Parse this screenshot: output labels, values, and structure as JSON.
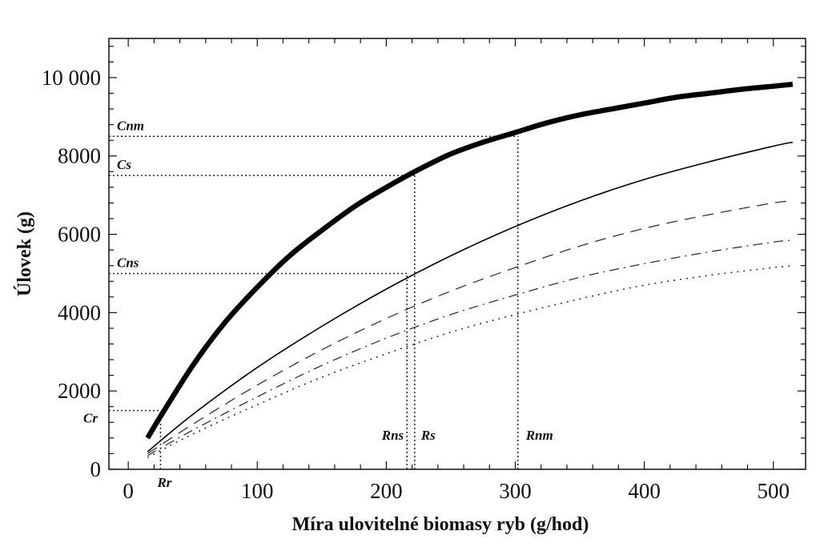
{
  "chart_data": {
    "type": "line",
    "xlabel": "Míra ulovitelné biomasy ryb (g/hod)",
    "ylabel": "Úlovek (g)",
    "xlim": [
      -15,
      525
    ],
    "ylim": [
      0,
      11000
    ],
    "xticks": [
      0,
      100,
      200,
      300,
      400,
      500
    ],
    "xtick_labels": [
      "0",
      "100",
      "200",
      "300",
      "400",
      "500"
    ],
    "yticks": [
      0,
      2000,
      4000,
      6000,
      8000,
      10000
    ],
    "ytick_labels": [
      "0",
      "2000",
      "4000",
      "6000",
      "8000",
      "10 000"
    ],
    "grid": false,
    "series": [
      {
        "style": "solid-thick",
        "color": "#000000",
        "x": [
          15,
          25,
          50,
          75,
          100,
          125,
          150,
          175,
          200,
          225,
          250,
          275,
          300,
          325,
          350,
          375,
          400,
          425,
          450,
          475,
          500,
          515
        ],
        "y": [
          800,
          1350,
          2650,
          3750,
          4650,
          5450,
          6100,
          6700,
          7200,
          7650,
          8050,
          8350,
          8600,
          8850,
          9050,
          9200,
          9350,
          9500,
          9600,
          9700,
          9780,
          9830
        ]
      },
      {
        "style": "solid",
        "color": "#000000",
        "x": [
          15,
          50,
          100,
          150,
          200,
          250,
          300,
          350,
          400,
          450,
          500,
          515
        ],
        "y": [
          450,
          1400,
          2600,
          3650,
          4600,
          5450,
          6200,
          6850,
          7400,
          7850,
          8250,
          8350
        ]
      },
      {
        "style": "dashed",
        "color": "#333333",
        "x": [
          15,
          50,
          100,
          150,
          200,
          250,
          300,
          350,
          400,
          450,
          500,
          515
        ],
        "y": [
          400,
          1150,
          2150,
          3050,
          3850,
          4550,
          5150,
          5700,
          6150,
          6500,
          6800,
          6850
        ]
      },
      {
        "style": "dash-dot",
        "color": "#333333",
        "x": [
          15,
          50,
          100,
          150,
          200,
          250,
          300,
          350,
          400,
          450,
          500,
          515
        ],
        "y": [
          350,
          1000,
          1850,
          2650,
          3350,
          3950,
          4450,
          4900,
          5250,
          5550,
          5800,
          5850
        ]
      },
      {
        "style": "dotted",
        "color": "#333333",
        "x": [
          15,
          50,
          100,
          150,
          200,
          250,
          300,
          350,
          400,
          450,
          500,
          515
        ],
        "y": [
          300,
          900,
          1650,
          2350,
          2950,
          3500,
          3950,
          4350,
          4700,
          4950,
          5150,
          5200
        ]
      }
    ],
    "annotations": [
      {
        "label": "Cnm",
        "axis": "y",
        "value": 8500,
        "x_end": 302
      },
      {
        "label": "Cs",
        "axis": "y",
        "value": 7500,
        "x_end": 222
      },
      {
        "label": "Cns",
        "axis": "y",
        "value": 5000,
        "x_end": 216
      },
      {
        "label": "Cr",
        "axis": "y",
        "value": 1500,
        "x_end": 25
      },
      {
        "label": "Rr",
        "axis": "x",
        "value": 25,
        "y_end": 1500
      },
      {
        "label": "Rns",
        "axis": "x",
        "value": 216,
        "y_end": 5000
      },
      {
        "label": "Rs",
        "axis": "x",
        "value": 222,
        "y_end": 7500
      },
      {
        "label": "Rnm",
        "axis": "x",
        "value": 302,
        "y_end": 8500
      }
    ]
  }
}
